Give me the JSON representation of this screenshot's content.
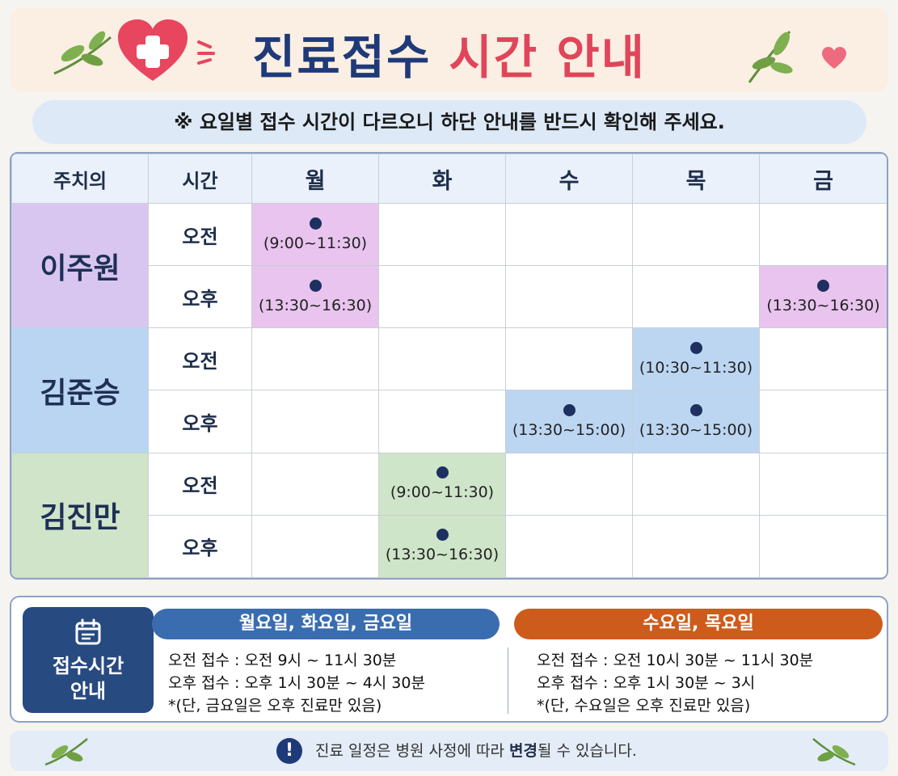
{
  "header": {
    "title_part1": "진료접수",
    "title_part2": "시간 안내",
    "icons": [
      "heart-plus-icon",
      "leaf-icon",
      "small-heart-icon"
    ]
  },
  "notice": {
    "text": "※ 요일별 접수 시간이 다르오니 하단 안내를 반드시 확인해 주세요."
  },
  "table": {
    "headers": [
      "주치의",
      "시간",
      "월",
      "화",
      "수",
      "목",
      "금"
    ],
    "slots": {
      "am": "오전",
      "pm": "오후"
    },
    "doctors": [
      {
        "name": "이주원",
        "color": "#d8c6f0",
        "am": [
          "9:00~11:30",
          "",
          "",
          "",
          ""
        ],
        "pm": [
          "13:30~16:30",
          "",
          "",
          "",
          "13:30~16:30"
        ]
      },
      {
        "name": "김준승",
        "color": "#b9d5f1",
        "am": [
          "",
          "",
          "",
          "10:30~11:30",
          ""
        ],
        "pm": [
          "",
          "",
          "13:30~15:00",
          "13:30~15:00",
          ""
        ]
      },
      {
        "name": "김진만",
        "color": "#cfe4c8",
        "am": [
          "",
          "9:00~11:30",
          "",
          "",
          ""
        ],
        "pm": [
          "",
          "13:30~16:30",
          "",
          "",
          ""
        ]
      }
    ]
  },
  "info": {
    "badge_line1": "접수시간",
    "badge_line2": "안내",
    "group1": {
      "title": "월요일, 화요일, 금요일",
      "am": "오전 접수 : 오전 9시 ~ 11시 30분",
      "pm": "오후 접수 : 오후 1시 30분 ~ 4시 30분",
      "note": "*(단, 금요일은 오후 진료만 있음)",
      "color": "#3a6db0"
    },
    "group2": {
      "title": "수요일, 목요일",
      "am": "오전 접수 : 오전 10시 30분 ~ 11시 30분",
      "pm": "오후 접수 : 오후 1시 30분 ~ 3시",
      "note": "*(단, 수요일은 오후 진료만 있음)",
      "color": "#cd5c1c"
    }
  },
  "footer": {
    "text_before": "진료 일정은 병원 사정에 따라",
    "text_bold": "변경",
    "text_after": "될 수 있습니다.",
    "warn_symbol": "!"
  }
}
